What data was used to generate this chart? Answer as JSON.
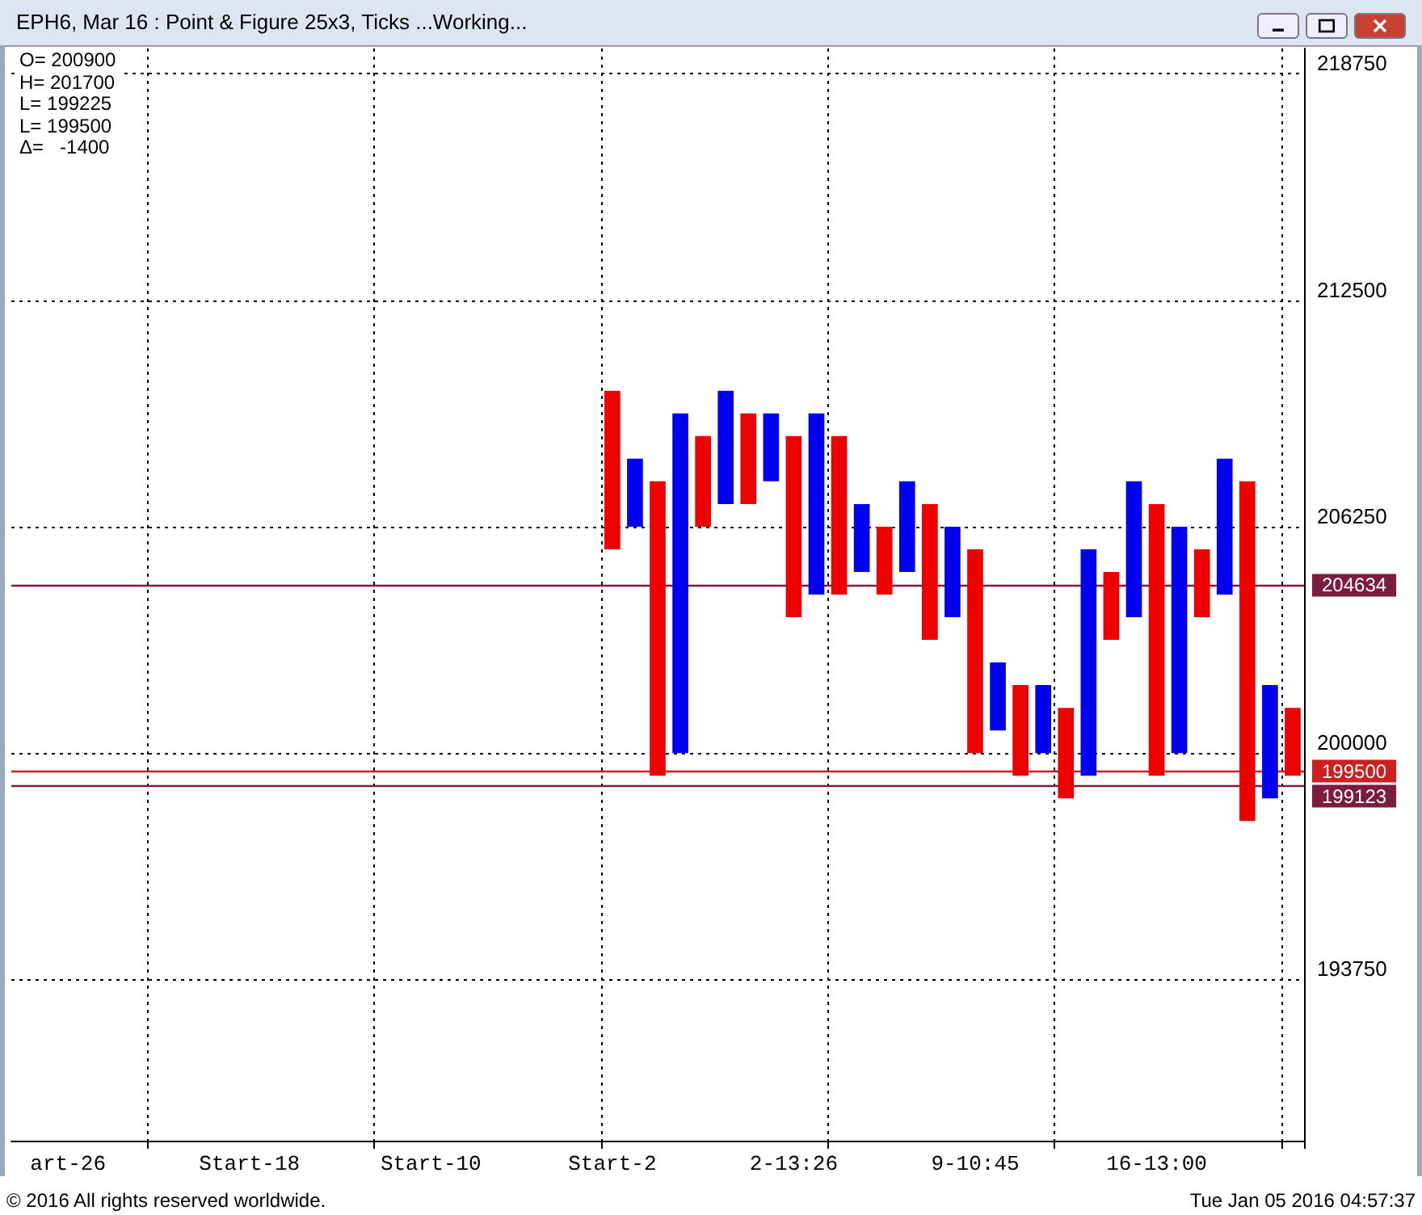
{
  "chart_data": {
    "type": "bar",
    "title": "EPH6, Mar 16 : Point & Figure 25x3, Ticks ...Working...",
    "annotations": [
      "O= 200900",
      "H= 201700",
      "L= 199225",
      "L= 199500",
      "Δ=   -1400",
      "© 2016 All rights reserved worldwide.",
      "Tue Jan 05 2016 04:57:37"
    ],
    "categories": [
      null,
      null,
      "art-26",
      null,
      null,
      null,
      null,
      null,
      null,
      null,
      "Start-18",
      null,
      null,
      null,
      null,
      null,
      null,
      null,
      "Start-10",
      null,
      null,
      null,
      null,
      null,
      null,
      null,
      "Start-2",
      null,
      null,
      null,
      null,
      null,
      null,
      null,
      "2-13:26",
      null,
      null,
      null,
      null,
      null,
      null,
      null,
      "9-10:45",
      null,
      null,
      null,
      null,
      null,
      null,
      null,
      "16-13:00",
      null,
      null,
      null,
      null,
      null,
      null
    ],
    "ylim": [
      189300,
      219450
    ],
    "yticks": [
      193750,
      200000,
      206250,
      212500,
      218750
    ],
    "grid": true,
    "series": [
      {
        "color": "#0000ee",
        "values": [
          null,
          null,
          null,
          null,
          null,
          null,
          null,
          null,
          null,
          null,
          null,
          null,
          null,
          null,
          null,
          null,
          null,
          null,
          null,
          null,
          null,
          null,
          null,
          null,
          null,
          null,
          null,
          1875,
          null,
          9375,
          null,
          3125,
          null,
          1875,
          null,
          5000,
          null,
          1875,
          null,
          2500,
          null,
          2500,
          null,
          1875,
          null,
          1875,
          null,
          6250,
          null,
          3750,
          null,
          6250,
          null,
          3750,
          null,
          3125,
          null
        ],
        "base": [
          null,
          null,
          null,
          null,
          null,
          null,
          null,
          null,
          null,
          null,
          null,
          null,
          null,
          null,
          null,
          null,
          null,
          null,
          null,
          null,
          null,
          null,
          null,
          null,
          null,
          null,
          null,
          206250,
          null,
          200000,
          null,
          206875,
          null,
          207500,
          null,
          204375,
          null,
          205000,
          null,
          205000,
          null,
          203750,
          null,
          200625,
          null,
          200000,
          null,
          199375,
          null,
          203750,
          null,
          200000,
          null,
          204375,
          null,
          198750,
          null
        ]
      },
      {
        "color": "#ee0000",
        "values": [
          null,
          null,
          null,
          null,
          null,
          null,
          null,
          null,
          null,
          null,
          null,
          null,
          null,
          null,
          null,
          null,
          null,
          null,
          null,
          null,
          null,
          null,
          null,
          null,
          null,
          null,
          4375,
          null,
          8125,
          null,
          2500,
          null,
          2500,
          null,
          5000,
          null,
          4375,
          null,
          1875,
          null,
          3750,
          null,
          5625,
          null,
          2500,
          null,
          2500,
          null,
          1875,
          null,
          7500,
          null,
          1875,
          null,
          9375,
          null,
          1875
        ],
        "base": [
          null,
          null,
          null,
          null,
          null,
          null,
          null,
          null,
          null,
          null,
          null,
          null,
          null,
          null,
          null,
          null,
          null,
          null,
          null,
          null,
          null,
          null,
          null,
          null,
          null,
          null,
          205625,
          null,
          199375,
          null,
          206250,
          null,
          206875,
          null,
          203750,
          null,
          204375,
          null,
          204375,
          null,
          203125,
          null,
          200000,
          null,
          199375,
          null,
          198750,
          null,
          203125,
          null,
          199375,
          null,
          203750,
          null,
          198125,
          null,
          199375
        ]
      }
    ],
    "ref_lines": [
      {
        "axis": "y",
        "value": 204634,
        "label": "204634",
        "color": "#7b1c3e"
      },
      {
        "axis": "y",
        "value": 199500,
        "label": "199500",
        "color": "#cc2020"
      },
      {
        "axis": "y",
        "value": 199123,
        "label": "199123",
        "color": "#7b1c3e"
      }
    ]
  }
}
